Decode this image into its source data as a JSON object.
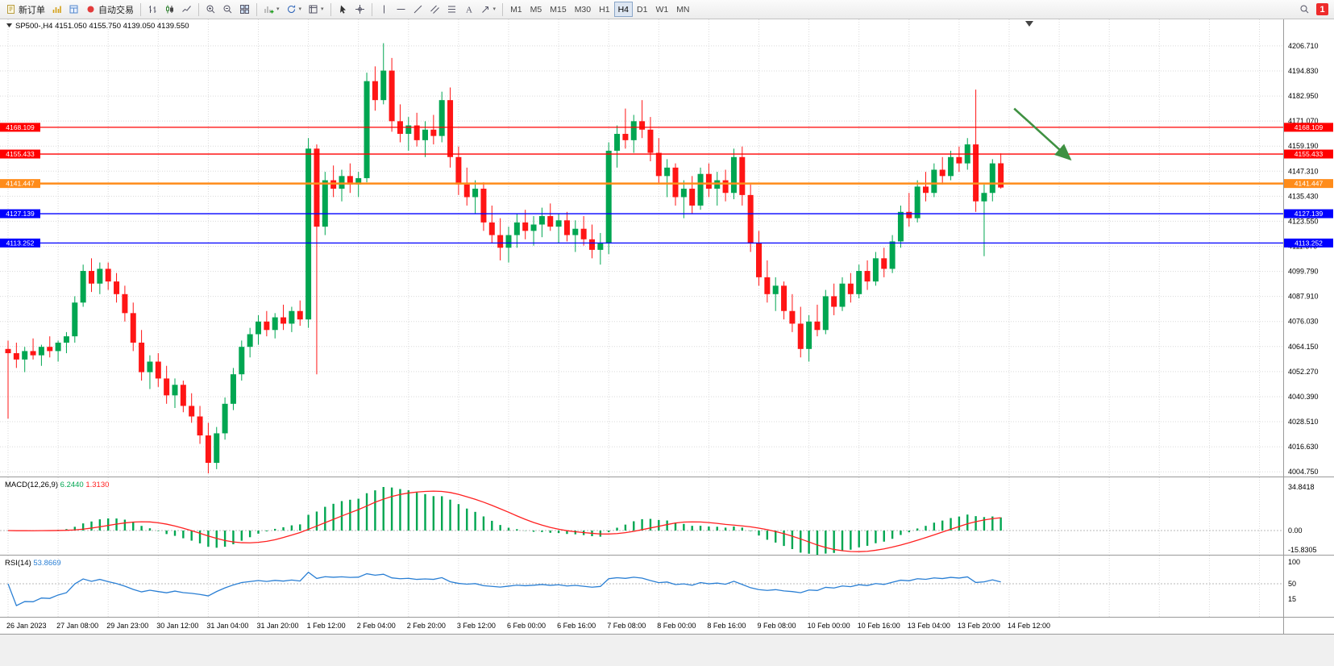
{
  "toolbar": {
    "new_order_label": "新订单",
    "auto_trading_label": "自动交易",
    "timeframes": [
      "M1",
      "M5",
      "M15",
      "M30",
      "H1",
      "H4",
      "D1",
      "W1",
      "MN"
    ],
    "active_timeframe": "H4",
    "badge": "1"
  },
  "chart": {
    "title_symbol": "SP500-,H4",
    "title_ohlc": "4151.050 4155.750 4139.050 4139.550",
    "colors": {
      "up": "#00a651",
      "down": "#ff1515",
      "wick_up": "#00a651",
      "wick_down": "#ff1515",
      "grid": "#dadada",
      "macd_hist": "#00a651",
      "macd_signal": "#ff2020",
      "rsi_line": "#2a7fd4",
      "arrow": "#3f9142",
      "axis_text": "#000000",
      "pane_border": "#9a9a9a"
    }
  },
  "chart_data": {
    "type": "candlestick",
    "symbol": "SP500-",
    "timeframe": "H4",
    "last_bar_ohlc": [
      4151.05,
      4155.75,
      4139.05,
      4139.55
    ],
    "price_axis_ticks": [
      "4206.710",
      "4194.830",
      "4182.950",
      "4171.070",
      "4159.190",
      "4147.310",
      "4135.430",
      "4123.550",
      "4111.670",
      "4099.790",
      "4087.910",
      "4076.030",
      "4064.150",
      "4052.270",
      "4040.390",
      "4028.510",
      "4016.630",
      "4004.750"
    ],
    "time_axis_labels": [
      "26 Jan 2023",
      "27 Jan 08:00",
      "29 Jan 23:00",
      "30 Jan 12:00",
      "31 Jan 04:00",
      "31 Jan 20:00",
      "1 Feb 12:00",
      "2 Feb 04:00",
      "2 Feb 20:00",
      "3 Feb 12:00",
      "6 Feb 00:00",
      "6 Feb 16:00",
      "7 Feb 08:00",
      "8 Feb 00:00",
      "8 Feb 16:00",
      "9 Feb 08:00",
      "10 Feb 00:00",
      "10 Feb 16:00",
      "13 Feb 04:00",
      "13 Feb 20:00",
      "14 Feb 12:00"
    ],
    "horizontal_levels": [
      {
        "price": 4168.109,
        "label": "4168.109",
        "color": "#ff0000",
        "width": 1.3
      },
      {
        "price": 4155.433,
        "label": "4155.433",
        "color": "#ff0000",
        "width": 1.3
      },
      {
        "price": 4141.447,
        "label": "4141.447",
        "color": "#ff8c1a",
        "width": 2.6
      },
      {
        "price": 4127.139,
        "label": "4127.139",
        "color": "#0000ff",
        "width": 1.3
      },
      {
        "price": 4113.252,
        "label": "4113.252",
        "color": "#0000ff",
        "width": 1.3
      }
    ],
    "arrow_annotation": {
      "from_bar": 120.6,
      "from_price": 4177,
      "to_bar": 127.3,
      "to_price": 4153,
      "color": "#3f9142"
    },
    "candles_ohlc": [
      [
        4063,
        4067,
        4030,
        4061
      ],
      [
        4061,
        4066,
        4054,
        4058
      ],
      [
        4058,
        4064,
        4052,
        4062
      ],
      [
        4062,
        4068,
        4058,
        4060
      ],
      [
        4060,
        4065,
        4055,
        4064
      ],
      [
        4064,
        4069,
        4059,
        4062
      ],
      [
        4062,
        4067,
        4057,
        4066
      ],
      [
        4066,
        4071,
        4061,
        4069
      ],
      [
        4069,
        4088,
        4066,
        4085
      ],
      [
        4085,
        4103,
        4083,
        4100
      ],
      [
        4100,
        4106,
        4090,
        4094
      ],
      [
        4094,
        4104,
        4089,
        4101
      ],
      [
        4101,
        4104,
        4091,
        4095
      ],
      [
        4095,
        4099,
        4085,
        4089
      ],
      [
        4089,
        4093,
        4076,
        4080
      ],
      [
        4080,
        4085,
        4062,
        4066
      ],
      [
        4066,
        4072,
        4048,
        4052
      ],
      [
        4052,
        4060,
        4044,
        4057
      ],
      [
        4057,
        4061,
        4045,
        4049
      ],
      [
        4049,
        4055,
        4037,
        4041
      ],
      [
        4041,
        4049,
        4035,
        4046
      ],
      [
        4046,
        4048,
        4033,
        4036
      ],
      [
        4036,
        4042,
        4028,
        4031
      ],
      [
        4031,
        4036,
        4018,
        4022
      ],
      [
        4022,
        4028,
        4004,
        4009
      ],
      [
        4009,
        4026,
        4006,
        4023
      ],
      [
        4023,
        4040,
        4020,
        4037
      ],
      [
        4037,
        4054,
        4034,
        4051
      ],
      [
        4051,
        4067,
        4048,
        4064
      ],
      [
        4064,
        4073,
        4059,
        4070
      ],
      [
        4070,
        4079,
        4065,
        4076
      ],
      [
        4076,
        4081,
        4069,
        4072
      ],
      [
        4072,
        4080,
        4068,
        4078
      ],
      [
        4078,
        4084,
        4072,
        4075
      ],
      [
        4075,
        4083,
        4071,
        4081
      ],
      [
        4081,
        4086,
        4074,
        4077
      ],
      [
        4077,
        4163,
        4073,
        4158
      ],
      [
        4158,
        4160,
        4051,
        4121
      ],
      [
        4121,
        4147,
        4117,
        4143
      ],
      [
        4143,
        4150,
        4135,
        4139
      ],
      [
        4139,
        4148,
        4133,
        4145
      ],
      [
        4145,
        4151,
        4137,
        4141
      ],
      [
        4141,
        4147,
        4135,
        4144
      ],
      [
        4144,
        4194,
        4142,
        4190
      ],
      [
        4190,
        4197,
        4176,
        4181
      ],
      [
        4181,
        4208,
        4179,
        4195
      ],
      [
        4195,
        4201,
        4166,
        4171
      ],
      [
        4171,
        4179,
        4161,
        4165
      ],
      [
        4165,
        4173,
        4157,
        4169
      ],
      [
        4169,
        4175,
        4159,
        4162
      ],
      [
        4162,
        4171,
        4154,
        4167
      ],
      [
        4167,
        4174,
        4160,
        4164
      ],
      [
        4164,
        4185,
        4161,
        4181
      ],
      [
        4181,
        4187,
        4149,
        4154
      ],
      [
        4154,
        4159,
        4136,
        4141
      ],
      [
        4141,
        4149,
        4131,
        4135
      ],
      [
        4135,
        4143,
        4127,
        4139
      ],
      [
        4139,
        4142,
        4119,
        4123
      ],
      [
        4123,
        4131,
        4113,
        4117
      ],
      [
        4117,
        4125,
        4105,
        4111
      ],
      [
        4111,
        4121,
        4104,
        4117
      ],
      [
        4117,
        4127,
        4111,
        4123
      ],
      [
        4123,
        4129,
        4115,
        4119
      ],
      [
        4119,
        4126,
        4112,
        4122
      ],
      [
        4122,
        4130,
        4116,
        4126
      ],
      [
        4126,
        4132,
        4119,
        4121
      ],
      [
        4121,
        4127,
        4113,
        4124
      ],
      [
        4124,
        4128,
        4114,
        4117
      ],
      [
        4117,
        4124,
        4109,
        4120
      ],
      [
        4120,
        4126,
        4112,
        4115
      ],
      [
        4115,
        4122,
        4106,
        4110
      ],
      [
        4110,
        4118,
        4103,
        4113
      ],
      [
        4113,
        4161,
        4108,
        4157
      ],
      [
        4157,
        4169,
        4149,
        4165
      ],
      [
        4165,
        4177,
        4158,
        4162
      ],
      [
        4162,
        4174,
        4156,
        4171
      ],
      [
        4171,
        4181,
        4163,
        4167
      ],
      [
        4167,
        4173,
        4152,
        4156
      ],
      [
        4156,
        4163,
        4141,
        4145
      ],
      [
        4145,
        4153,
        4135,
        4149
      ],
      [
        4149,
        4151,
        4131,
        4135
      ],
      [
        4135,
        4143,
        4125,
        4139
      ],
      [
        4139,
        4145,
        4127,
        4131
      ],
      [
        4131,
        4149,
        4129,
        4146
      ],
      [
        4146,
        4151,
        4135,
        4139
      ],
      [
        4139,
        4147,
        4131,
        4143
      ],
      [
        4143,
        4148,
        4133,
        4137
      ],
      [
        4137,
        4158,
        4134,
        4154
      ],
      [
        4154,
        4159,
        4131,
        4136
      ],
      [
        4136,
        4141,
        4109,
        4113
      ],
      [
        4113,
        4119,
        4093,
        4097
      ],
      [
        4097,
        4105,
        4085,
        4089
      ],
      [
        4089,
        4097,
        4081,
        4093
      ],
      [
        4093,
        4095,
        4077,
        4081
      ],
      [
        4081,
        4089,
        4071,
        4075
      ],
      [
        4075,
        4083,
        4059,
        4063
      ],
      [
        4063,
        4079,
        4057,
        4076
      ],
      [
        4076,
        4084,
        4069,
        4072
      ],
      [
        4072,
        4091,
        4070,
        4088
      ],
      [
        4088,
        4094,
        4079,
        4083
      ],
      [
        4083,
        4097,
        4081,
        4094
      ],
      [
        4094,
        4099,
        4085,
        4089
      ],
      [
        4089,
        4103,
        4087,
        4100
      ],
      [
        4100,
        4105,
        4091,
        4095
      ],
      [
        4095,
        4109,
        4093,
        4106
      ],
      [
        4106,
        4111,
        4097,
        4101
      ],
      [
        4101,
        4117,
        4099,
        4114
      ],
      [
        4114,
        4131,
        4111,
        4128
      ],
      [
        4128,
        4137,
        4121,
        4125
      ],
      [
        4125,
        4143,
        4123,
        4140
      ],
      [
        4140,
        4147,
        4133,
        4137
      ],
      [
        4137,
        4151,
        4135,
        4148
      ],
      [
        4148,
        4154,
        4141,
        4145
      ],
      [
        4145,
        4157,
        4143,
        4154
      ],
      [
        4154,
        4159,
        4147,
        4151
      ],
      [
        4151,
        4163,
        4148,
        4160
      ],
      [
        4160,
        4186,
        4128,
        4133
      ],
      [
        4133,
        4141,
        4107,
        4137
      ],
      [
        4137,
        4153,
        4133,
        4151
      ],
      [
        4151.05,
        4155.75,
        4139.05,
        4139.55
      ]
    ],
    "indicators": [
      {
        "name": "MACD",
        "params": [
          12,
          26,
          9
        ],
        "label": "MACD(12,26,9)",
        "main_value": "6.2440",
        "signal_value": "1.3130",
        "axis_labels": [
          "34.8418",
          "0.00",
          "-15.8305"
        ]
      },
      {
        "name": "RSI",
        "params": [
          14
        ],
        "label": "RSI(14)",
        "value": "53.8669",
        "axis_labels": [
          "100",
          "50",
          "15"
        ]
      }
    ]
  }
}
